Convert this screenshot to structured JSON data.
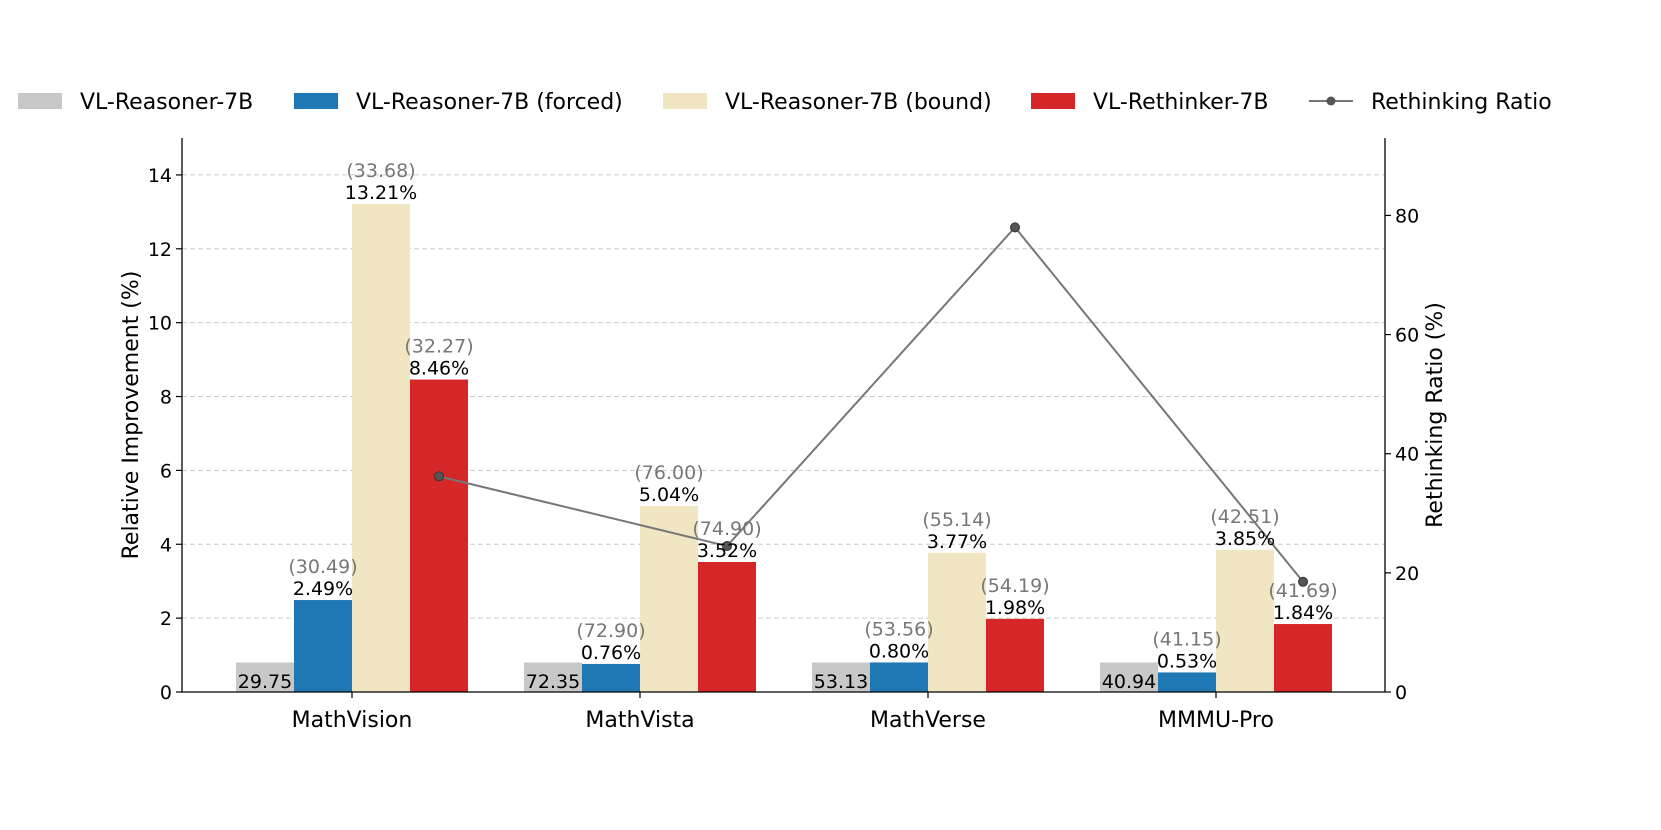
{
  "chart_data": {
    "type": "bar",
    "categories": [
      "MathVision",
      "MathVista",
      "MathVerse",
      "MMMU-Pro"
    ],
    "ylabel": "Relative Improvement (%)",
    "y2label": "Rethinking Ratio (%)",
    "ylim": [
      0,
      15
    ],
    "y2lim": [
      0,
      93
    ],
    "yticks": [
      0,
      2,
      4,
      6,
      8,
      10,
      12,
      14
    ],
    "y2ticks": [
      0,
      20,
      40,
      60,
      80
    ],
    "grid": true,
    "legend_position": "top",
    "baseline_marker_value": 0.8,
    "series": [
      {
        "name": "VL-Reasoner-7B",
        "color": "#c8c8c8",
        "values": [
          0.8,
          0.8,
          0.8,
          0.8
        ],
        "labels": [
          "29.75",
          "72.35",
          "53.13",
          "40.94"
        ]
      },
      {
        "name": "VL-Reasoner-7B (forced)",
        "color": "#1f77b4",
        "values": [
          2.49,
          0.76,
          0.8,
          0.53
        ],
        "labels": [
          "2.49%",
          "0.76%",
          "0.80%",
          "0.53%"
        ],
        "scores": [
          "(30.49)",
          "(72.90)",
          "(53.56)",
          "(41.15)"
        ]
      },
      {
        "name": "VL-Reasoner-7B (bound)",
        "color": "#f0e6c2",
        "values": [
          13.21,
          5.04,
          3.77,
          3.85
        ],
        "labels": [
          "13.21%",
          "5.04%",
          "3.77%",
          "3.85%"
        ],
        "scores": [
          "(33.68)",
          "(76.00)",
          "(55.14)",
          "(42.51)"
        ]
      },
      {
        "name": "VL-Rethinker-7B",
        "color": "#d62728",
        "values": [
          8.46,
          3.52,
          1.98,
          1.84
        ],
        "labels": [
          "8.46%",
          "3.52%",
          "1.98%",
          "1.84%"
        ],
        "scores": [
          "(32.27)",
          "(74.90)",
          "(54.19)",
          "(41.69)"
        ]
      }
    ],
    "line_series": {
      "name": "Rethinking Ratio",
      "color": "#777777",
      "axis": "right",
      "values": [
        36.2,
        24.5,
        78.0,
        18.5
      ]
    }
  }
}
